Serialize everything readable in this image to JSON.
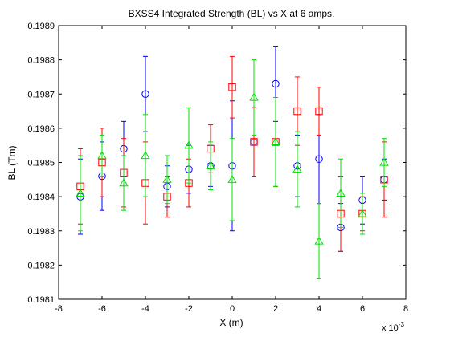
{
  "chart_data": {
    "type": "scatter",
    "title": "BXSS4 Integrated Strength (BL) vs X at 6 amps.",
    "xlabel": "X (m)",
    "ylabel": "BL (Tm)",
    "x_multiplier_label": "x 10",
    "x_multiplier_exp": "-3",
    "xlim": [
      -8,
      8
    ],
    "ylim": [
      0.1981,
      0.1989
    ],
    "xticks": [
      -8,
      -6,
      -4,
      -2,
      0,
      2,
      4,
      6,
      8
    ],
    "xtick_labels": [
      "-8",
      "-6",
      "-4",
      "-2",
      "0",
      "2",
      "4",
      "6",
      "8"
    ],
    "yticks": [
      0.1981,
      0.1982,
      0.1983,
      0.1984,
      0.1985,
      0.1986,
      0.1987,
      0.1988,
      0.1989
    ],
    "ytick_labels": [
      "0.1981",
      "0.1982",
      "0.1983",
      "0.1984",
      "0.1985",
      "0.1986",
      "0.1987",
      "0.1988",
      "0.1989"
    ],
    "grid": false,
    "series": [
      {
        "marker": "circle",
        "color": "#0000ff",
        "x": [
          -7,
          -6,
          -5,
          -4,
          -3,
          -2,
          -1,
          0,
          1,
          2,
          3,
          4,
          5,
          6,
          7
        ],
        "y": [
          0.1984,
          0.19846,
          0.19854,
          0.1987,
          0.19843,
          0.19848,
          0.19849,
          0.19849,
          0.19856,
          0.19873,
          0.19849,
          0.19851,
          0.19831,
          0.19839,
          0.19845
        ],
        "err": [
          0.00011,
          0.0001,
          8e-05,
          0.00011,
          6e-05,
          7e-05,
          6e-05,
          0.00019,
          0.0001,
          0.00011,
          9e-05,
          0.00013,
          7e-05,
          7e-05,
          6e-05
        ]
      },
      {
        "marker": "square",
        "color": "#ff0000",
        "x": [
          -7,
          -6,
          -5,
          -4,
          -3,
          -2,
          -1,
          0,
          1,
          2,
          3,
          4,
          5,
          6,
          7
        ],
        "y": [
          0.19843,
          0.1985,
          0.19847,
          0.19844,
          0.1984,
          0.19844,
          0.19854,
          0.19872,
          0.19856,
          0.19856,
          0.19865,
          0.19865,
          0.19835,
          0.19835,
          0.19845
        ],
        "err": [
          0.00011,
          0.0001,
          0.0001,
          0.00012,
          6e-05,
          7e-05,
          7e-05,
          9e-05,
          0.0001,
          0.00013,
          0.0001,
          7e-05,
          0.00011,
          5e-05,
          0.00011
        ]
      },
      {
        "marker": "triangle",
        "color": "#00e000",
        "x": [
          -7,
          -6,
          -5,
          -4,
          -3,
          -2,
          -1,
          0,
          1,
          2,
          3,
          4,
          5,
          6,
          7
        ],
        "y": [
          0.19841,
          0.19852,
          0.19844,
          0.19852,
          0.19845,
          0.19855,
          0.19849,
          0.19845,
          0.19869,
          0.19856,
          0.19848,
          0.19827,
          0.19841,
          0.19835,
          0.1985
        ],
        "err": [
          0.00011,
          6e-05,
          8e-05,
          0.00012,
          7e-05,
          0.00011,
          7e-05,
          0.00012,
          0.00011,
          0.00013,
          0.00011,
          0.00011,
          0.0001,
          6e-05,
          7e-05
        ]
      }
    ]
  }
}
